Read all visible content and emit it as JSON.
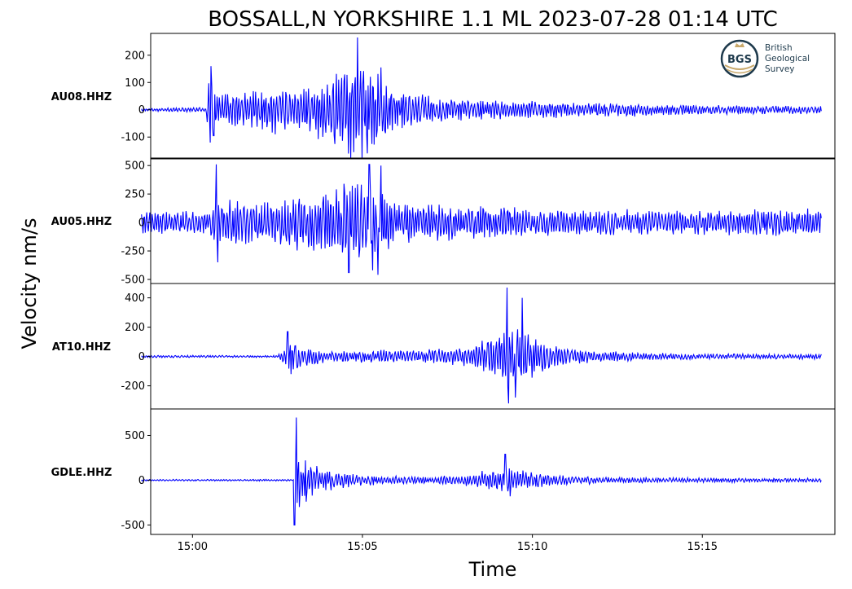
{
  "title": "BOSSALL,N YORKSHIRE 1.1 ML   2023-07-28 01:14 UTC",
  "ylabel": "Velocity nm/s",
  "xlabel": "Time",
  "logo": {
    "abbr": "BGS",
    "lines": [
      "British",
      "Geological",
      "Survey"
    ]
  },
  "colors": {
    "trace": "#0000ff",
    "logo": "#1e3a4c",
    "logo_accent": "#c8a86a"
  },
  "chart_data": {
    "type": "line",
    "title": "BOSSALL,N YORKSHIRE 1.1 ML   2023-07-28 01:14 UTC",
    "xlabel": "Time",
    "ylabel": "Velocity nm/s",
    "x_ticks": [
      "15:00",
      "15:05",
      "15:10",
      "15:15"
    ],
    "x_range_minutes": [
      -1.23,
      18.9
    ],
    "x_tick_minutes": [
      0,
      5,
      10,
      15
    ],
    "trace_minutes": [
      -1.5,
      18.5
    ],
    "grid": false,
    "series": [
      {
        "name": "AU08.HHZ",
        "ylim": [
          -165,
          265
        ],
        "y_ticks": [
          {
            "v": 200,
            "label": "200"
          },
          {
            "v": 100,
            "label": "100"
          },
          {
            "v": 0,
            "label": "0"
          },
          {
            "v": -100,
            "label": "-100"
          }
        ],
        "envelope": [
          [
            -1.5,
            6
          ],
          [
            -0.5,
            8
          ],
          [
            0.4,
            10
          ],
          [
            0.5,
            140
          ],
          [
            0.8,
            55
          ],
          [
            1.5,
            70
          ],
          [
            2.5,
            100
          ],
          [
            3.2,
            80
          ],
          [
            3.8,
            120
          ],
          [
            4.4,
            160
          ],
          [
            4.8,
            190
          ],
          [
            5.2,
            170
          ],
          [
            5.6,
            120
          ],
          [
            6.0,
            80
          ],
          [
            7.0,
            55
          ],
          [
            8.0,
            40
          ],
          [
            10.0,
            35
          ],
          [
            12.0,
            28
          ],
          [
            14.0,
            22
          ],
          [
            16.0,
            18
          ],
          [
            18.5,
            15
          ]
        ],
        "spikes": [
          [
            0.55,
            160
          ],
          [
            0.62,
            -95
          ],
          [
            4.85,
            265
          ],
          [
            4.75,
            -155
          ],
          [
            5.15,
            -160
          ],
          [
            5.55,
            155
          ]
        ]
      },
      {
        "name": "AU05.HHZ",
        "ylim": [
          -500,
          530
        ],
        "y_ticks": [
          {
            "v": 500,
            "label": "500"
          },
          {
            "v": 250,
            "label": "250"
          },
          {
            "v": 0,
            "label": "0"
          },
          {
            "v": -250,
            "label": "-250"
          },
          {
            "v": -500,
            "label": "-500"
          }
        ],
        "envelope": [
          [
            -1.5,
            110
          ],
          [
            0.5,
            100
          ],
          [
            0.7,
            320
          ],
          [
            1.0,
            220
          ],
          [
            2.0,
            170
          ],
          [
            3.0,
            250
          ],
          [
            4.0,
            300
          ],
          [
            4.6,
            380
          ],
          [
            5.0,
            340
          ],
          [
            5.6,
            300
          ],
          [
            6.0,
            200
          ],
          [
            7.0,
            180
          ],
          [
            8.0,
            160
          ],
          [
            10.0,
            130
          ],
          [
            12.0,
            120
          ],
          [
            15.0,
            110
          ],
          [
            18.5,
            130
          ]
        ],
        "spikes": [
          [
            0.7,
            510
          ],
          [
            0.75,
            -350
          ],
          [
            4.6,
            -440
          ],
          [
            5.2,
            510
          ],
          [
            5.55,
            500
          ],
          [
            5.45,
            -460
          ],
          [
            5.3,
            -420
          ]
        ]
      },
      {
        "name": "AT10.HHZ",
        "ylim": [
          -330,
          470
        ],
        "y_ticks": [
          {
            "v": 400,
            "label": "400"
          },
          {
            "v": 200,
            "label": "200"
          },
          {
            "v": 0,
            "label": "0"
          },
          {
            "v": -200,
            "label": "-200"
          }
        ],
        "envelope": [
          [
            -1.5,
            8
          ],
          [
            2.5,
            8
          ],
          [
            2.7,
            60
          ],
          [
            2.9,
            130
          ],
          [
            3.3,
            70
          ],
          [
            4.0,
            40
          ],
          [
            5.0,
            45
          ],
          [
            6.0,
            50
          ],
          [
            7.0,
            55
          ],
          [
            8.0,
            70
          ],
          [
            8.5,
            110
          ],
          [
            9.0,
            190
          ],
          [
            9.5,
            230
          ],
          [
            10.0,
            150
          ],
          [
            10.5,
            90
          ],
          [
            11.0,
            60
          ],
          [
            12.0,
            45
          ],
          [
            13.0,
            30
          ],
          [
            15.0,
            20
          ],
          [
            18.5,
            18
          ]
        ],
        "spikes": [
          [
            2.8,
            170
          ],
          [
            2.9,
            -120
          ],
          [
            9.25,
            470
          ],
          [
            9.3,
            -320
          ],
          [
            9.7,
            400
          ],
          [
            9.5,
            -280
          ]
        ]
      },
      {
        "name": "GDLE.HHZ",
        "ylim": [
          -560,
          750
        ],
        "y_ticks": [
          {
            "v": 500,
            "label": "500"
          },
          {
            "v": 0,
            "label": "0"
          },
          {
            "v": -500,
            "label": "-500"
          }
        ],
        "envelope": [
          [
            -1.5,
            10
          ],
          [
            3.0,
            10
          ],
          [
            3.05,
            300
          ],
          [
            3.3,
            250
          ],
          [
            3.7,
            150
          ],
          [
            4.2,
            110
          ],
          [
            5.0,
            60
          ],
          [
            6.0,
            50
          ],
          [
            7.0,
            40
          ],
          [
            8.0,
            70
          ],
          [
            9.0,
            150
          ],
          [
            9.5,
            130
          ],
          [
            10.0,
            100
          ],
          [
            11.0,
            60
          ],
          [
            12.0,
            40
          ],
          [
            14.0,
            30
          ],
          [
            18.5,
            25
          ]
        ],
        "spikes": [
          [
            3.05,
            700
          ],
          [
            3.0,
            -500
          ],
          [
            3.15,
            -300
          ],
          [
            3.35,
            -240
          ],
          [
            9.2,
            290
          ],
          [
            9.35,
            -180
          ]
        ]
      }
    ]
  }
}
